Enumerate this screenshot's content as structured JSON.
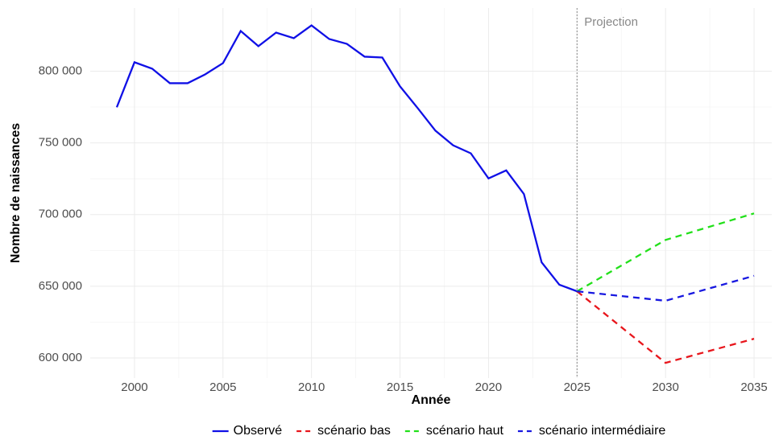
{
  "chart_data": {
    "type": "line",
    "x_label": "Année",
    "y_label": "Nombre de naissances",
    "xlim": [
      1997.5,
      2036
    ],
    "ylim": [
      586000,
      844000
    ],
    "xticks": [
      2000,
      2005,
      2010,
      2015,
      2020,
      2025,
      2030,
      2035
    ],
    "yticks": [
      {
        "value": 600000,
        "label": "600 000"
      },
      {
        "value": 650000,
        "label": "650 000"
      },
      {
        "value": 700000,
        "label": "700 000"
      },
      {
        "value": 750000,
        "label": "750 000"
      },
      {
        "value": 800000,
        "label": "800 000"
      }
    ],
    "grid": true,
    "legend": "bottom",
    "annotations": [
      {
        "text": "Projection",
        "x": 2025
      }
    ],
    "series": [
      {
        "name": "Observé",
        "color": "#1010e6",
        "linestyle": "solid",
        "x": [
          1999,
          2000,
          2001,
          2002,
          2003,
          2004,
          2005,
          2006,
          2007,
          2008,
          2009,
          2010,
          2011,
          2012,
          2013,
          2014,
          2015,
          2016,
          2017,
          2018,
          2019,
          2020,
          2021,
          2022,
          2023,
          2024,
          2025
        ],
        "values": [
          774800,
          806200,
          801700,
          791600,
          791600,
          797800,
          805600,
          828000,
          817400,
          826900,
          823000,
          831900,
          822400,
          819000,
          810100,
          809500,
          789400,
          774200,
          758500,
          748300,
          742700,
          725200,
          730800,
          714300,
          666700,
          651100,
          646500
        ]
      },
      {
        "name": "scénario bas",
        "color": "#e8161c",
        "linestyle": "dashed",
        "x": [
          2025,
          2030,
          2035
        ],
        "values": [
          646500,
          596600,
          613400
        ]
      },
      {
        "name": "scénario haut",
        "color": "#22e01a",
        "linestyle": "dashed",
        "x": [
          2025,
          2030,
          2035
        ],
        "values": [
          646500,
          682300,
          700800
        ]
      },
      {
        "name": "scénario intermédiaire",
        "color": "#1818e0",
        "linestyle": "dashed",
        "x": [
          2025,
          2030,
          2035
        ],
        "values": [
          646500,
          639900,
          657300
        ]
      }
    ]
  }
}
